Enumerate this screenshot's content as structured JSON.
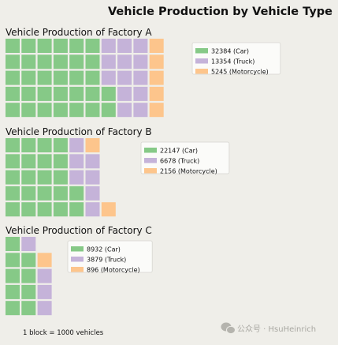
{
  "title": "Vehicle Production by Vehicle Type",
  "footnote": "1 block = 1000 vehicles",
  "watermark": "公众号 · HsuHeinrich",
  "colors": {
    "Car": "#86c987",
    "Truck": "#c5b3d9",
    "Motorcycle": "#fdc58c",
    "background": "#efeee9"
  },
  "chart_data": [
    {
      "type": "waffle",
      "title": "Vehicle Production of Factory A",
      "rows": 5,
      "unit": 1000,
      "categories": [
        "Car",
        "Truck",
        "Motorcycle"
      ],
      "values": [
        32384,
        13354,
        5245
      ],
      "blocks": [
        32,
        13,
        5
      ],
      "legend": [
        "32384 (Car)",
        "13354 (Truck)",
        "5245 (Motorcycle)"
      ]
    },
    {
      "type": "waffle",
      "title": "Vehicle Production of Factory B",
      "rows": 5,
      "unit": 1000,
      "categories": [
        "Car",
        "Truck",
        "Motorcycle"
      ],
      "values": [
        22147,
        6678,
        2156
      ],
      "blocks": [
        22,
        7,
        2
      ],
      "legend": [
        "22147 (Car)",
        "6678 (Truck)",
        "2156 (Motorcycle)"
      ]
    },
    {
      "type": "waffle",
      "title": "Vehicle Production of Factory C",
      "rows": 5,
      "unit": 1000,
      "categories": [
        "Car",
        "Truck",
        "Motorcycle"
      ],
      "values": [
        8932,
        3879,
        896
      ],
      "blocks": [
        9,
        4,
        1
      ],
      "legend": [
        "8932 (Car)",
        "3879 (Truck)",
        "896 (Motorcycle)"
      ]
    }
  ]
}
